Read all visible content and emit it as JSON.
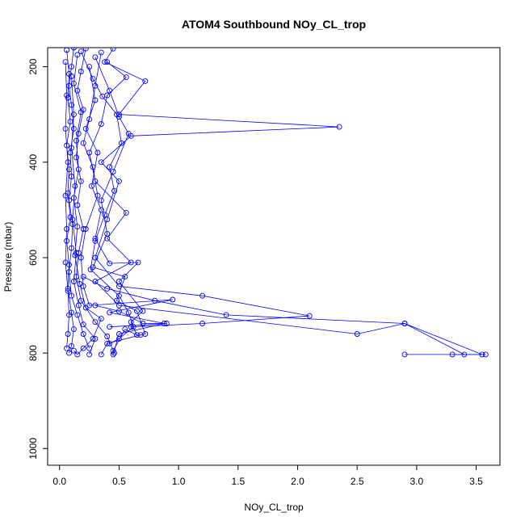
{
  "chart_data": {
    "type": "line",
    "title": "ATOM4 Southbound NOy_CL_trop",
    "xlabel": "NOy_CL_trop",
    "ylabel": "Pressure (mbar)",
    "xlim": [
      -0.1,
      3.7
    ],
    "ylim": [
      1035,
      160
    ],
    "y_reversed": true,
    "grid": false,
    "series_color": "#0000ff",
    "marker": "open-circle",
    "x_ticks": [
      {
        "value": 0.0,
        "label": "0.0"
      },
      {
        "value": 0.5,
        "label": "0.5"
      },
      {
        "value": 1.0,
        "label": "1.0"
      },
      {
        "value": 1.5,
        "label": "1.5"
      },
      {
        "value": 2.0,
        "label": "2.0"
      },
      {
        "value": 2.5,
        "label": "2.5"
      },
      {
        "value": 3.0,
        "label": "3.0"
      },
      {
        "value": 3.5,
        "label": "3.5"
      }
    ],
    "y_ticks": [
      {
        "value": 200,
        "label": "200"
      },
      {
        "value": 400,
        "label": "400"
      },
      {
        "value": 600,
        "label": "600"
      },
      {
        "value": 800,
        "label": "800"
      },
      {
        "value": 1000,
        "label": "1000"
      }
    ],
    "profiles": [
      [
        [
          0.12,
          160
        ],
        [
          0.1,
          200
        ],
        [
          0.08,
          240
        ],
        [
          0.1,
          280
        ],
        [
          0.12,
          330
        ],
        [
          0.09,
          380
        ],
        [
          0.1,
          430
        ],
        [
          0.08,
          480
        ],
        [
          0.11,
          530
        ],
        [
          0.1,
          580
        ],
        [
          0.08,
          630
        ],
        [
          0.1,
          680
        ],
        [
          0.15,
          720
        ],
        [
          0.2,
          760
        ],
        [
          0.25,
          790
        ]
      ],
      [
        [
          0.45,
          162
        ],
        [
          0.38,
          190
        ],
        [
          0.72,
          230
        ],
        [
          0.5,
          300
        ],
        [
          2.35,
          326
        ],
        [
          0.6,
          345
        ],
        [
          0.35,
          400
        ],
        [
          0.5,
          440
        ],
        [
          0.4,
          520
        ],
        [
          0.3,
          600
        ],
        [
          0.5,
          660
        ],
        [
          1.2,
          680
        ],
        [
          2.1,
          722
        ],
        [
          1.2,
          738
        ],
        [
          0.6,
          745
        ]
      ],
      [
        [
          0.4,
          190
        ],
        [
          0.56,
          222
        ],
        [
          0.4,
          260
        ],
        [
          0.35,
          320
        ],
        [
          0.25,
          380
        ],
        [
          0.3,
          440
        ],
        [
          0.56,
          506
        ],
        [
          0.4,
          560
        ],
        [
          0.6,
          610
        ],
        [
          0.3,
          650
        ],
        [
          0.5,
          700
        ],
        [
          2.5,
          760
        ],
        [
          2.9,
          738
        ],
        [
          3.55,
          803
        ],
        [
          2.9,
          803
        ]
      ],
      [
        [
          0.35,
          170
        ],
        [
          0.3,
          240
        ],
        [
          0.25,
          310
        ],
        [
          0.2,
          360
        ],
        [
          0.28,
          410
        ],
        [
          0.32,
          470
        ],
        [
          0.22,
          540
        ],
        [
          0.18,
          600
        ],
        [
          0.2,
          660
        ],
        [
          0.25,
          700
        ],
        [
          0.95,
          688
        ],
        [
          0.42,
          715
        ],
        [
          0.88,
          738
        ],
        [
          0.5,
          760
        ],
        [
          0.45,
          803
        ]
      ],
      [
        [
          0.22,
          162
        ],
        [
          0.18,
          210
        ],
        [
          0.15,
          250
        ],
        [
          0.2,
          290
        ],
        [
          0.16,
          340
        ],
        [
          0.14,
          390
        ],
        [
          0.18,
          440
        ],
        [
          0.15,
          490
        ],
        [
          0.2,
          540
        ],
        [
          0.16,
          590
        ],
        [
          0.14,
          640
        ],
        [
          0.18,
          690
        ],
        [
          0.3,
          735
        ],
        [
          0.4,
          765
        ],
        [
          0.46,
          800
        ]
      ],
      [
        [
          0.06,
          165
        ],
        [
          0.08,
          215
        ],
        [
          0.07,
          265
        ],
        [
          0.09,
          315
        ],
        [
          0.06,
          365
        ],
        [
          0.08,
          415
        ],
        [
          0.07,
          465
        ],
        [
          0.09,
          515
        ],
        [
          0.06,
          565
        ],
        [
          0.08,
          615
        ],
        [
          0.07,
          665
        ],
        [
          0.1,
          715
        ],
        [
          0.12,
          750
        ],
        [
          0.1,
          785
        ],
        [
          0.08,
          800
        ]
      ],
      [
        [
          0.3,
          180
        ],
        [
          0.42,
          250
        ],
        [
          0.5,
          305
        ],
        [
          0.58,
          340
        ],
        [
          0.45,
          420
        ],
        [
          0.35,
          480
        ],
        [
          0.4,
          550
        ],
        [
          0.28,
          620
        ],
        [
          0.55,
          640
        ],
        [
          0.48,
          690
        ],
        [
          0.65,
          712
        ],
        [
          0.72,
          760
        ],
        [
          0.68,
          762
        ],
        [
          0.4,
          780
        ],
        [
          0.35,
          803
        ]
      ],
      [
        [
          0.15,
          175
        ],
        [
          0.12,
          235
        ],
        [
          0.18,
          295
        ],
        [
          0.14,
          355
        ],
        [
          0.16,
          415
        ],
        [
          0.12,
          475
        ],
        [
          0.15,
          535
        ],
        [
          0.13,
          595
        ],
        [
          0.17,
          655
        ],
        [
          0.22,
          705
        ],
        [
          0.35,
          728
        ],
        [
          0.28,
          770
        ],
        [
          0.2,
          790
        ],
        [
          0.15,
          803
        ],
        [
          0.12,
          795
        ]
      ],
      [
        [
          0.05,
          190
        ],
        [
          0.06,
          260
        ],
        [
          0.05,
          330
        ],
        [
          0.07,
          400
        ],
        [
          0.05,
          470
        ],
        [
          0.06,
          540
        ],
        [
          0.05,
          610
        ],
        [
          0.07,
          670
        ],
        [
          0.08,
          720
        ],
        [
          0.07,
          760
        ],
        [
          0.06,
          790
        ]
      ],
      [
        [
          0.25,
          200
        ],
        [
          0.3,
          270
        ],
        [
          0.22,
          330
        ],
        [
          0.32,
          380
        ],
        [
          0.27,
          450
        ],
        [
          0.35,
          500
        ],
        [
          0.3,
          560
        ],
        [
          0.42,
          612
        ],
        [
          0.66,
          610
        ],
        [
          0.5,
          650
        ],
        [
          0.7,
          712
        ],
        [
          0.6,
          735
        ],
        [
          0.65,
          762
        ],
        [
          0.55,
          750
        ],
        [
          0.45,
          795
        ]
      ],
      [
        [
          0.18,
          168
        ],
        [
          0.28,
          225
        ],
        [
          0.36,
          262
        ],
        [
          0.48,
          300
        ],
        [
          0.52,
          360
        ],
        [
          0.42,
          410
        ],
        [
          0.46,
          460
        ],
        [
          0.38,
          510
        ],
        [
          0.3,
          565
        ],
        [
          0.26,
          625
        ],
        [
          0.5,
          680
        ],
        [
          0.58,
          715
        ],
        [
          0.62,
          745
        ],
        [
          0.5,
          770
        ],
        [
          0.42,
          780
        ]
      ],
      [
        [
          0.1,
          220
        ],
        [
          0.12,
          300
        ],
        [
          0.1,
          370
        ],
        [
          0.13,
          450
        ],
        [
          0.11,
          520
        ],
        [
          0.14,
          590
        ],
        [
          0.12,
          650
        ],
        [
          0.16,
          700
        ],
        [
          0.2,
          740
        ],
        [
          0.3,
          770
        ],
        [
          0.25,
          803
        ]
      ],
      [
        [
          0.2,
          640
        ],
        [
          0.4,
          665
        ],
        [
          0.8,
          690
        ],
        [
          1.4,
          720
        ],
        [
          2.9,
          738
        ],
        [
          3.4,
          803
        ],
        [
          3.3,
          803
        ],
        [
          3.58,
          803
        ]
      ],
      [
        [
          0.3,
          700
        ],
        [
          0.5,
          712
        ],
        [
          0.7,
          738
        ],
        [
          0.9,
          738
        ],
        [
          0.42,
          745
        ]
      ]
    ]
  }
}
